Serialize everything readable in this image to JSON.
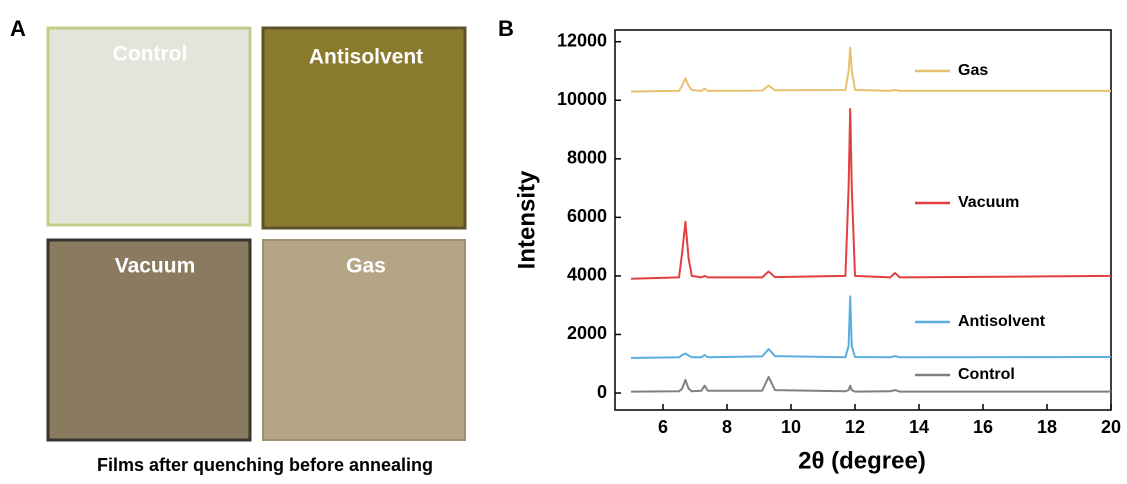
{
  "panel_a": {
    "label": "A",
    "caption": "Films after quenching before annealing",
    "films": [
      "Control",
      "Antisolvent",
      "Vacuum",
      "Gas"
    ]
  },
  "panel_b_label": "B",
  "chart_data": {
    "type": "line",
    "xlabel": "2θ (degree)",
    "ylabel": "Intensity",
    "x": [
      5,
      6.5,
      6.6,
      6.7,
      6.8,
      6.9,
      7.2,
      7.3,
      7.4,
      9.1,
      9.3,
      9.5,
      11.7,
      11.8,
      11.85,
      11.9,
      12.0,
      13.1,
      13.25,
      13.4,
      20
    ],
    "series": [
      {
        "name": "Control",
        "color": "#808080",
        "values": [
          50,
          60,
          150,
          450,
          150,
          60,
          80,
          250,
          80,
          80,
          550,
          100,
          60,
          100,
          250,
          100,
          50,
          60,
          100,
          50,
          50
        ]
      },
      {
        "name": "Antisolvent",
        "color": "#5aaee0",
        "values": [
          1200,
          1220,
          1300,
          1350,
          1280,
          1220,
          1220,
          1300,
          1220,
          1250,
          1500,
          1260,
          1220,
          1600,
          3300,
          1600,
          1230,
          1220,
          1260,
          1220,
          1230
        ]
      },
      {
        "name": "Vacuum",
        "color": "#e04040",
        "values": [
          3900,
          3950,
          4800,
          5850,
          4600,
          4000,
          3950,
          4000,
          3950,
          3950,
          4150,
          3960,
          4000,
          7000,
          9700,
          7000,
          4000,
          3950,
          4100,
          3950,
          4000
        ]
      },
      {
        "name": "Gas",
        "color": "#e8c170",
        "values": [
          10300,
          10320,
          10500,
          10750,
          10500,
          10350,
          10320,
          10400,
          10320,
          10330,
          10500,
          10340,
          10350,
          11000,
          11800,
          11000,
          10350,
          10320,
          10350,
          10320,
          10320
        ]
      }
    ],
    "xlim": [
      4.5,
      20
    ],
    "xticks": [
      6,
      8,
      10,
      12,
      14,
      16,
      18,
      20
    ],
    "ylim": [
      -580,
      12400
    ],
    "yticks": [
      0,
      2000,
      4000,
      6000,
      8000,
      10000,
      12000
    ]
  }
}
